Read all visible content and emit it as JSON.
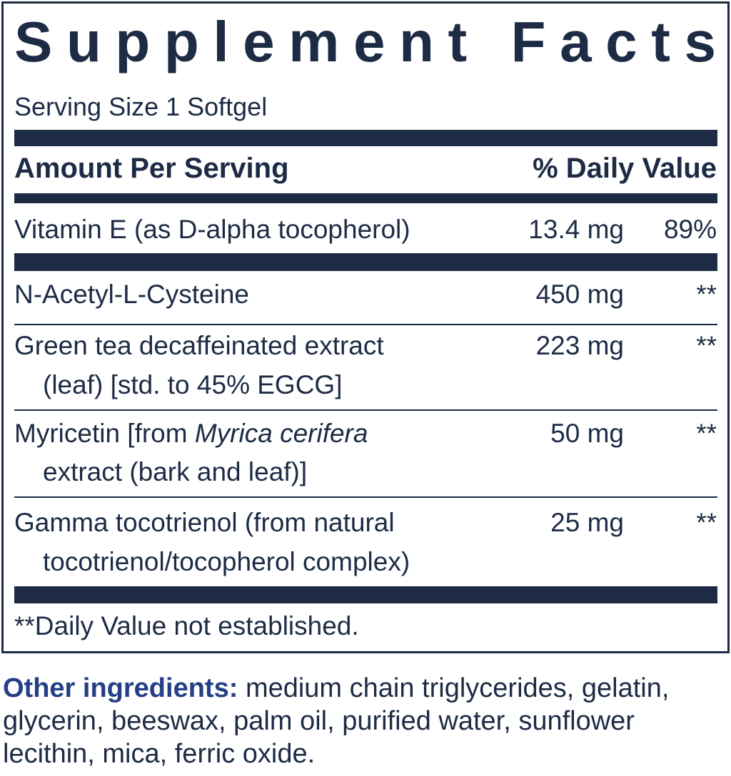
{
  "title": "Supplement Facts",
  "serving_size": "Serving Size 1 Softgel",
  "header": {
    "amount": "Amount Per Serving",
    "daily_value": "% Daily Value"
  },
  "rows": [
    {
      "name": "Vitamin E (as D-alpha tocopherol)",
      "amount": "13.4 mg",
      "daily_value": "89%"
    },
    {
      "name": "N-Acetyl-L-Cysteine",
      "amount": "450 mg",
      "daily_value": "**"
    },
    {
      "name": "Green tea decaffeinated extract",
      "name_cont": "(leaf) [std. to 45% EGCG]",
      "amount": "223 mg",
      "daily_value": "**"
    },
    {
      "name": "Myricetin [from",
      "name_italic": "Myrica cerifera",
      "name_cont": "extract (bark and leaf)]",
      "amount": "50 mg",
      "daily_value": "**"
    },
    {
      "name": "Gamma tocotrienol (from natural",
      "name_cont": "tocotrienol/tocopherol complex)",
      "amount": "25 mg",
      "daily_value": "**"
    }
  ],
  "footnote": "**Daily Value not established.",
  "other_ingredients": {
    "label": "Other ingredients:",
    "text": "medium chain triglycerides, gelatin, glycerin, beeswax, palm oil, purified water, sunflower lecithin, mica, ferric oxide."
  }
}
